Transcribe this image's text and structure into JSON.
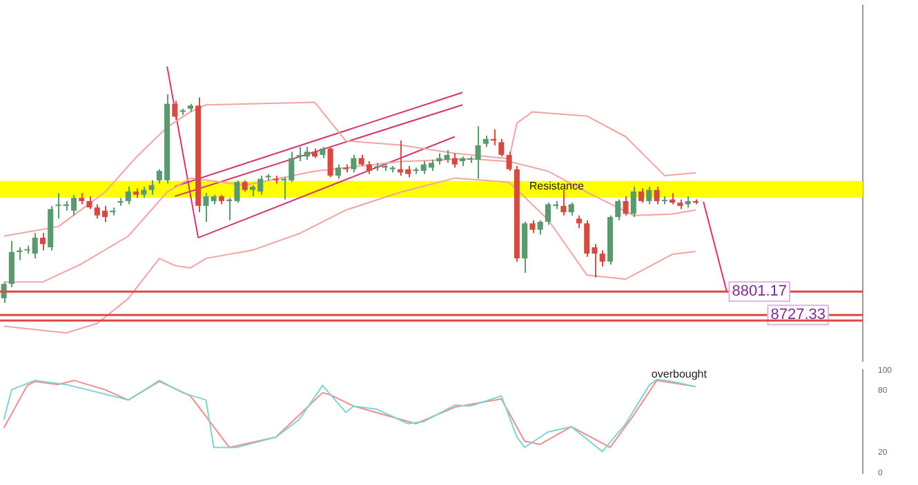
{
  "chart_data": [
    {
      "type": "candlestick",
      "tick_labels": false,
      "ylim": [
        8583,
        9699
      ],
      "categories": [
        null,
        null,
        null,
        null,
        null,
        null,
        null,
        null,
        null,
        null,
        null,
        null,
        null,
        null,
        null,
        null,
        null,
        null,
        null,
        null,
        null,
        null,
        null,
        null,
        null,
        null,
        null,
        null,
        null,
        null,
        null,
        null,
        null,
        null,
        null,
        null,
        null,
        null,
        null,
        null,
        null,
        null,
        null,
        null,
        null,
        null,
        null,
        null,
        null,
        null,
        null,
        null,
        null,
        null,
        null,
        null,
        null,
        null,
        null,
        null,
        null,
        null,
        null,
        null,
        null,
        null,
        null,
        null,
        null,
        null,
        null,
        null,
        null,
        null,
        null,
        null,
        null,
        null,
        null,
        null,
        null,
        null,
        null,
        null,
        null,
        null,
        null,
        null,
        null,
        null,
        null,
        null,
        null,
        null,
        null,
        null,
        null,
        null,
        null,
        null,
        null,
        null,
        null,
        null,
        null,
        null,
        null,
        null,
        null,
        null,
        null
      ],
      "ohlc": [
        [
          8780,
          8830,
          8765,
          8825
        ],
        [
          8825,
          8960,
          8815,
          8925
        ],
        [
          8925,
          8940,
          8900,
          8930
        ],
        [
          8930,
          8945,
          8920,
          8930
        ],
        [
          8920,
          8985,
          8905,
          8970
        ],
        [
          8970,
          8985,
          8930,
          8950
        ],
        [
          8940,
          9070,
          8930,
          9060
        ],
        [
          9070,
          9110,
          9030,
          9070
        ],
        [
          9070,
          9085,
          9055,
          9075
        ],
        [
          9055,
          9105,
          9040,
          9095
        ],
        [
          9095,
          9110,
          9075,
          9085
        ],
        [
          9085,
          9100,
          9060,
          9065
        ],
        [
          9065,
          9075,
          9030,
          9040
        ],
        [
          9055,
          9070,
          9020,
          9035
        ],
        [
          9050,
          9065,
          9040,
          9055
        ],
        [
          9080,
          9095,
          9070,
          9085
        ],
        [
          9085,
          9130,
          9075,
          9115
        ],
        [
          9115,
          9125,
          9095,
          9105
        ],
        [
          9105,
          9130,
          9095,
          9120
        ],
        [
          9120,
          9150,
          9105,
          9135
        ],
        [
          9150,
          9185,
          9140,
          9180
        ],
        [
          9150,
          9420,
          9140,
          9390
        ],
        [
          9390,
          9400,
          9340,
          9350
        ],
        [
          9365,
          9375,
          9355,
          9370
        ],
        [
          9375,
          9390,
          9365,
          9385
        ],
        [
          9385,
          9410,
          9050,
          9070
        ],
        [
          9070,
          9110,
          9020,
          9100
        ],
        [
          9085,
          9105,
          9075,
          9100
        ],
        [
          9100,
          9105,
          9075,
          9085
        ],
        [
          9085,
          9095,
          9025,
          9090
        ],
        [
          9085,
          9150,
          9080,
          9145
        ],
        [
          9145,
          9150,
          9115,
          9120
        ],
        [
          9120,
          9135,
          9100,
          9130
        ],
        [
          9115,
          9165,
          9105,
          9155
        ],
        [
          9160,
          9170,
          9150,
          9160
        ],
        [
          9155,
          9165,
          9140,
          9150
        ],
        [
          9150,
          9160,
          9090,
          9155
        ],
        [
          9150,
          9240,
          9145,
          9220
        ],
        [
          9225,
          9255,
          9210,
          9225
        ],
        [
          9225,
          9255,
          9215,
          9240
        ],
        [
          9240,
          9250,
          9220,
          9225
        ],
        [
          9230,
          9255,
          9220,
          9250
        ],
        [
          9250,
          9255,
          9160,
          9165
        ],
        [
          9165,
          9200,
          9155,
          9190
        ],
        [
          9190,
          9200,
          9175,
          9185
        ],
        [
          9185,
          9230,
          9175,
          9220
        ],
        [
          9220,
          9230,
          9195,
          9200
        ],
        [
          9200,
          9210,
          9170,
          9180
        ],
        [
          9190,
          9205,
          9180,
          9190
        ],
        [
          9190,
          9200,
          9180,
          9195
        ],
        [
          9185,
          9195,
          9175,
          9190
        ],
        [
          9185,
          9275,
          9165,
          9175
        ],
        [
          9185,
          9195,
          9160,
          9170
        ],
        [
          9180,
          9190,
          9170,
          9180
        ],
        [
          9180,
          9210,
          9170,
          9200
        ],
        [
          9190,
          9215,
          9180,
          9205
        ],
        [
          9210,
          9235,
          9200,
          9220
        ],
        [
          9215,
          9245,
          9205,
          9230
        ],
        [
          9220,
          9235,
          9190,
          9200
        ],
        [
          9210,
          9225,
          9195,
          9220
        ],
        [
          9215,
          9225,
          9205,
          9215
        ],
        [
          9215,
          9320,
          9155,
          9260
        ],
        [
          9265,
          9290,
          9255,
          9280
        ],
        [
          9280,
          9310,
          9260,
          9275
        ],
        [
          9270,
          9280,
          9225,
          9230
        ],
        [
          9230,
          9240,
          9180,
          9185
        ],
        [
          9185,
          9195,
          8895,
          8905
        ],
        [
          8905,
          9020,
          8860,
          9015
        ],
        [
          9015,
          9025,
          8985,
          8995
        ],
        [
          8995,
          9025,
          8980,
          9020
        ],
        [
          9020,
          9080,
          9010,
          9075
        ],
        [
          9070,
          9085,
          9060,
          9070
        ],
        [
          9070,
          9120,
          9040,
          9050
        ],
        [
          9050,
          9080,
          9040,
          9075
        ],
        [
          9030,
          9040,
          9000,
          9015
        ],
        [
          9015,
          9025,
          8910,
          8920
        ],
        [
          8940,
          8950,
          8845,
          8920
        ],
        [
          8920,
          8930,
          8880,
          8895
        ],
        [
          8895,
          9040,
          8885,
          9035
        ],
        [
          9035,
          9090,
          9025,
          9085
        ],
        [
          9085,
          9100,
          9040,
          9045
        ],
        [
          9045,
          9130,
          9035,
          9115
        ],
        [
          9115,
          9125,
          9080,
          9085
        ],
        [
          9085,
          9130,
          9075,
          9120
        ],
        [
          9120,
          9130,
          9075,
          9085
        ],
        [
          9085,
          9100,
          9075,
          9085
        ],
        [
          9090,
          9110,
          9075,
          9080
        ],
        [
          9080,
          9090,
          9060,
          9070
        ],
        [
          9075,
          9100,
          9065,
          9085
        ],
        [
          9085,
          9090,
          9075,
          9080
        ],
        null,
        null,
        null,
        null,
        null,
        null,
        null,
        null,
        null,
        null,
        null,
        null,
        null,
        null,
        null,
        null,
        null,
        null,
        null,
        null,
        null
      ],
      "colors": [
        "#5b9a6e",
        "#5b9a6e",
        "#5b9a6e",
        "#5b9a6e",
        "#5b9a6e",
        "#d44b3f",
        "#5b9a6e",
        "#5b9a6e",
        "#5b9a6e",
        "#5b9a6e",
        "#d44b3f",
        "#d44b3f",
        "#d44b3f",
        "#d44b3f",
        "#5b9a6e",
        "#5b9a6e",
        "#5b9a6e",
        "#d44b3f",
        "#5b9a6e",
        "#5b9a6e",
        "#5b9a6e",
        "#5b9a6e",
        "#d44b3f",
        "#5b9a6e",
        "#5b9a6e",
        "#d44b3f",
        "#5b9a6e",
        "#5b9a6e",
        "#d44b3f",
        "#5b9a6e",
        "#5b9a6e",
        "#d44b3f",
        "#5b9a6e",
        "#5b9a6e",
        "#5b9a6e",
        "#d44b3f",
        "#5b9a6e",
        "#5b9a6e",
        "#5b9a6e",
        "#5b9a6e",
        "#d44b3f",
        "#5b9a6e",
        "#d44b3f",
        "#5b9a6e",
        "#d44b3f",
        "#5b9a6e",
        "#d44b3f",
        "#d44b3f",
        "#5b9a6e",
        "#5b9a6e",
        "#5b9a6e",
        "#d44b3f",
        "#d44b3f",
        "#5b9a6e",
        "#5b9a6e",
        "#5b9a6e",
        "#5b9a6e",
        "#5b9a6e",
        "#d44b3f",
        "#5b9a6e",
        "#5b9a6e",
        "#5b9a6e",
        "#5b9a6e",
        "#d44b3f",
        "#d44b3f",
        "#d44b3f",
        "#d44b3f",
        "#5b9a6e",
        "#d44b3f",
        "#5b9a6e",
        "#5b9a6e",
        "#5b9a6e",
        "#d44b3f",
        "#5b9a6e",
        "#d44b3f",
        "#d44b3f",
        "#d44b3f",
        "#d44b3f",
        "#5b9a6e",
        "#5b9a6e",
        "#d44b3f",
        "#5b9a6e",
        "#d44b3f",
        "#5b9a6e",
        "#d44b3f",
        "#5b9a6e",
        "#d44b3f",
        "#d44b3f",
        "#5b9a6e",
        "#d44b3f",
        null,
        null,
        null,
        null,
        null,
        null,
        null,
        null,
        null,
        null,
        null,
        null,
        null,
        null,
        null,
        null,
        null,
        null,
        null,
        null,
        null
      ],
      "series": [
        {
          "type": "line",
          "color": "#f2a3a3",
          "values": [
            8975,
            null,
            null,
            null,
            null,
            null,
            null,
            9005,
            null,
            null,
            null,
            null,
            null,
            9113,
            null,
            null,
            null,
            9222,
            null,
            null,
            null,
            9317,
            null,
            null,
            9365,
            null,
            9387,
            null,
            null,
            null,
            null,
            null,
            null,
            null,
            null,
            null,
            null,
            null,
            null,
            null,
            9395,
            null,
            null,
            null,
            9274,
            null,
            null,
            null,
            null,
            null,
            null,
            9261,
            null,
            null,
            null,
            null,
            null,
            null,
            9235,
            null,
            null,
            null,
            null,
            null,
            null,
            9218,
            9330,
            null,
            9365,
            null,
            null,
            null,
            null,
            null,
            null,
            9352,
            null,
            null,
            null,
            null,
            9287,
            null,
            null,
            null,
            null,
            9165,
            null,
            null,
            null,
            9174,
            null,
            null,
            null,
            null,
            null,
            null,
            null,
            null,
            null,
            null,
            null,
            null,
            null,
            null,
            null,
            null,
            null,
            null,
            null,
            null,
            null
          ]
        },
        {
          "type": "line",
          "color": "#f2a3a3",
          "values": [
            8831,
            null,
            null,
            null,
            null,
            8831,
            null,
            null,
            null,
            null,
            8888,
            null,
            null,
            null,
            null,
            null,
            8975,
            null,
            null,
            null,
            null,
            9113,
            null,
            null,
            9157,
            null,
            null,
            null,
            null,
            null,
            null,
            9135,
            null,
            null,
            null,
            null,
            null,
            null,
            null,
            null,
            9179,
            null,
            null,
            null,
            null,
            null,
            null,
            null,
            null,
            null,
            null,
            9209,
            null,
            null,
            null,
            null,
            null,
            null,
            null,
            null,
            9218,
            null,
            null,
            null,
            null,
            9209,
            null,
            null,
            null,
            null,
            9179,
            null,
            null,
            null,
            null,
            9113,
            null,
            null,
            null,
            null,
            null,
            9040,
            null,
            null,
            null,
            null,
            9044,
            null,
            null,
            9057,
            null,
            null,
            null,
            null,
            null,
            null,
            null,
            null,
            null,
            null,
            null,
            null,
            null,
            null,
            null,
            null,
            null,
            null,
            null,
            null,
            null
          ]
        },
        {
          "type": "line",
          "color": "#f2a3a3",
          "values": [
            8692,
            null,
            null,
            null,
            null,
            null,
            null,
            null,
            8671,
            null,
            null,
            null,
            8701,
            null,
            null,
            null,
            8779,
            null,
            null,
            null,
            8905,
            null,
            8883,
            null,
            8875,
            null,
            8905,
            null,
            null,
            null,
            null,
            null,
            8931,
            null,
            null,
            null,
            null,
            null,
            8983,
            null,
            null,
            null,
            null,
            null,
            9057,
            null,
            null,
            null,
            null,
            null,
            null,
            9113,
            null,
            null,
            null,
            null,
            null,
            null,
            9157,
            null,
            null,
            null,
            null,
            null,
            null,
            9144,
            null,
            null,
            null,
            null,
            9027,
            null,
            null,
            null,
            null,
            8853,
            null,
            null,
            null,
            null,
            8840,
            null,
            null,
            null,
            null,
            null,
            8918,
            null,
            null,
            8927,
            null,
            null,
            null,
            null,
            null,
            null,
            null,
            null,
            null,
            null,
            null,
            null,
            null,
            null,
            null,
            null,
            null,
            null,
            null,
            null,
            null
          ]
        },
        {
          "type": "line",
          "color": "#d6336c",
          "values": [
            null,
            null,
            null,
            null,
            null,
            null,
            null,
            null,
            null,
            null,
            null,
            null,
            null,
            null,
            null,
            null,
            null,
            null,
            null,
            null,
            null,
            9508,
            null,
            null,
            null,
            8970,
            null,
            null,
            null,
            null,
            null,
            null,
            null,
            null,
            null,
            null,
            null,
            null,
            null,
            null,
            null,
            null,
            null,
            null,
            null,
            null,
            null,
            null,
            null,
            null,
            null,
            null,
            null,
            null,
            null,
            null,
            null,
            null,
            null,
            null,
            null,
            null,
            null,
            null,
            null,
            null,
            null,
            null,
            null,
            null,
            null,
            null,
            null,
            null,
            null,
            null,
            null,
            null,
            null,
            null,
            null,
            null,
            null,
            null,
            null,
            null,
            null,
            null,
            null,
            null,
            null,
            null,
            null,
            null,
            null,
            null,
            null,
            null,
            null,
            null,
            null,
            null,
            null,
            null,
            null,
            null,
            null,
            null,
            null,
            null,
            null
          ]
        },
        {
          "type": "line",
          "color": "#d6336c",
          "values": [
            null,
            null,
            null,
            null,
            null,
            null,
            null,
            null,
            null,
            null,
            null,
            null,
            null,
            null,
            null,
            null,
            null,
            null,
            null,
            null,
            null,
            null,
            9131,
            null,
            null,
            null,
            null,
            null,
            null,
            null,
            null,
            null,
            null,
            null,
            null,
            null,
            null,
            null,
            null,
            null,
            null,
            null,
            null,
            null,
            null,
            null,
            null,
            null,
            null,
            null,
            null,
            null,
            null,
            null,
            null,
            null,
            null,
            null,
            null,
            9426,
            null,
            null,
            null,
            null,
            null,
            null,
            null,
            null,
            null,
            null,
            null,
            null,
            null,
            null,
            null,
            null,
            null,
            null,
            null,
            null,
            null,
            null,
            null,
            null,
            null,
            null,
            null,
            null,
            null,
            null,
            null,
            null,
            null,
            null,
            null,
            null,
            null,
            null,
            null,
            null,
            null,
            null,
            null,
            null,
            null,
            null,
            null,
            null,
            null,
            null,
            null
          ]
        },
        {
          "type": "line",
          "color": "#d6336c",
          "values": [
            null,
            null,
            null,
            null,
            null,
            null,
            null,
            null,
            null,
            null,
            null,
            null,
            null,
            null,
            null,
            null,
            null,
            null,
            null,
            null,
            null,
            null,
            9100,
            null,
            null,
            null,
            null,
            null,
            null,
            null,
            null,
            null,
            null,
            null,
            null,
            null,
            null,
            null,
            null,
            null,
            null,
            null,
            null,
            null,
            null,
            null,
            null,
            null,
            null,
            null,
            null,
            null,
            null,
            null,
            null,
            null,
            null,
            null,
            null,
            9387,
            null,
            null,
            null,
            null,
            null,
            null,
            null,
            null,
            null,
            null,
            null,
            null,
            null,
            null,
            null,
            null,
            null,
            null,
            null,
            null,
            null,
            null,
            null,
            null,
            null,
            null,
            null,
            null,
            null,
            null,
            null,
            null,
            null,
            null,
            null,
            null,
            null,
            null,
            null,
            null,
            null,
            null,
            null,
            null,
            null,
            null,
            null,
            null,
            null,
            null,
            null
          ]
        },
        {
          "type": "line",
          "color": "#d6336c",
          "values": [
            null,
            null,
            null,
            null,
            null,
            null,
            null,
            null,
            null,
            null,
            null,
            null,
            null,
            null,
            null,
            null,
            null,
            null,
            null,
            null,
            null,
            null,
            null,
            null,
            null,
            8970,
            null,
            null,
            null,
            null,
            null,
            null,
            null,
            null,
            null,
            null,
            null,
            null,
            null,
            null,
            null,
            null,
            null,
            null,
            null,
            null,
            null,
            null,
            null,
            null,
            null,
            null,
            null,
            null,
            null,
            null,
            null,
            null,
            9287,
            null,
            null,
            null,
            null,
            null,
            null,
            null,
            null,
            null,
            null,
            null,
            null,
            null,
            null,
            null,
            null,
            null,
            null,
            null,
            null,
            null,
            null,
            null,
            null,
            null,
            null,
            null,
            null,
            null,
            null,
            null,
            null,
            null,
            null,
            null,
            null,
            null,
            null,
            null,
            null,
            null,
            null,
            null,
            null,
            null,
            null,
            null,
            null,
            null,
            null,
            null,
            null
          ]
        },
        {
          "type": "line",
          "color": "#d6336c",
          "values": [
            null,
            null,
            null,
            null,
            null,
            null,
            null,
            null,
            null,
            null,
            null,
            null,
            null,
            null,
            null,
            null,
            null,
            null,
            null,
            null,
            null,
            null,
            null,
            null,
            null,
            null,
            null,
            null,
            null,
            null,
            null,
            null,
            null,
            null,
            null,
            null,
            null,
            null,
            null,
            null,
            null,
            null,
            null,
            null,
            null,
            null,
            null,
            null,
            null,
            null,
            null,
            null,
            null,
            null,
            null,
            null,
            null,
            null,
            null,
            null,
            null,
            null,
            null,
            null,
            null,
            null,
            null,
            null,
            null,
            null,
            null,
            null,
            null,
            null,
            null,
            null,
            null,
            null,
            null,
            null,
            null,
            null,
            null,
            null,
            null,
            null,
            null,
            null,
            null,
            null,
            9083,
            null,
            null,
            8801,
            null,
            null,
            null,
            null,
            null,
            null,
            null,
            null,
            null,
            null,
            null,
            null,
            null,
            null,
            null,
            null,
            null
          ]
        }
      ],
      "bands": [
        {
          "axis": "y",
          "from": 9096,
          "to": 9148,
          "label": "Resistance",
          "color": "#ffff00"
        }
      ],
      "ref_lines": [
        {
          "axis": "y",
          "value": 8801.17,
          "label": "8801.17",
          "color": "#e04646"
        },
        {
          "axis": "y",
          "value": 8727.33,
          "label": "8727.33",
          "color": "#e04646"
        },
        {
          "axis": "y",
          "value": 8710,
          "label": null,
          "color": "#e04646"
        }
      ]
    },
    {
      "type": "line",
      "tick_labels": "y",
      "ylim": [
        0,
        100
      ],
      "yticks": [
        0,
        20,
        80,
        100
      ],
      "categories": [
        null,
        null,
        null,
        null,
        null,
        null,
        null,
        null,
        null,
        null,
        null,
        null,
        null,
        null,
        null,
        null,
        null,
        null,
        null,
        null,
        null,
        null,
        null,
        null,
        null,
        null,
        null,
        null,
        null,
        null,
        null,
        null,
        null,
        null,
        null,
        null,
        null,
        null,
        null,
        null,
        null,
        null,
        null,
        null,
        null,
        null,
        null,
        null,
        null,
        null,
        null,
        null,
        null,
        null,
        null,
        null,
        null,
        null,
        null,
        null,
        null,
        null,
        null,
        null,
        null,
        null,
        null,
        null,
        null,
        null,
        null,
        null,
        null,
        null,
        null,
        null,
        null,
        null,
        null,
        null,
        null,
        null,
        null,
        null,
        null,
        null,
        null,
        null,
        null,
        null,
        null,
        null,
        null,
        null,
        null,
        null,
        null,
        null,
        null,
        null,
        null,
        null,
        null,
        null,
        null,
        null,
        null,
        null,
        null,
        null,
        null
      ],
      "series": [
        {
          "color": "#7fd3d3",
          "values": [
            52,
            81,
            null,
            null,
            90,
            null,
            null,
            null,
            86,
            null,
            null,
            null,
            null,
            null,
            null,
            null,
            71,
            null,
            null,
            85,
            90,
            null,
            null,
            78,
            null,
            null,
            71,
            25,
            null,
            null,
            25,
            null,
            null,
            null,
            null,
            35,
            null,
            null,
            52,
            null,
            null,
            85,
            null,
            null,
            59,
            65,
            null,
            null,
            62,
            null,
            null,
            null,
            48,
            null,
            50,
            null,
            null,
            null,
            66,
            null,
            65,
            null,
            null,
            null,
            75,
            null,
            35,
            25,
            null,
            null,
            40,
            null,
            null,
            45,
            null,
            null,
            null,
            21,
            null,
            null,
            48,
            null,
            null,
            85,
            91,
            null,
            89,
            null,
            null,
            84,
            null,
            null,
            null,
            null,
            null,
            null,
            null,
            null,
            null,
            null,
            null,
            null,
            null,
            null,
            null,
            null,
            null,
            null,
            null,
            null,
            null
          ]
        },
        {
          "color": "#f08c8c",
          "values": [
            44,
            null,
            null,
            85,
            89,
            null,
            null,
            86,
            null,
            90,
            null,
            null,
            null,
            81,
            null,
            null,
            71,
            null,
            null,
            null,
            89,
            null,
            null,
            null,
            75,
            null,
            null,
            null,
            null,
            25,
            null,
            null,
            null,
            null,
            null,
            35,
            null,
            null,
            null,
            null,
            null,
            78,
            76,
            null,
            null,
            65,
            null,
            null,
            null,
            null,
            null,
            null,
            null,
            48,
            null,
            null,
            null,
            null,
            64,
            null,
            null,
            null,
            null,
            null,
            72,
            null,
            null,
            31,
            null,
            28,
            null,
            null,
            null,
            45,
            null,
            null,
            null,
            null,
            25,
            null,
            null,
            56,
            null,
            null,
            90,
            null,
            null,
            null,
            null,
            84,
            null,
            null,
            null,
            null,
            null,
            null,
            null,
            null,
            null,
            null,
            null,
            null,
            null,
            null,
            null,
            null,
            null,
            null,
            null,
            null,
            null
          ]
        }
      ],
      "annotations": [
        "overbought"
      ]
    }
  ]
}
